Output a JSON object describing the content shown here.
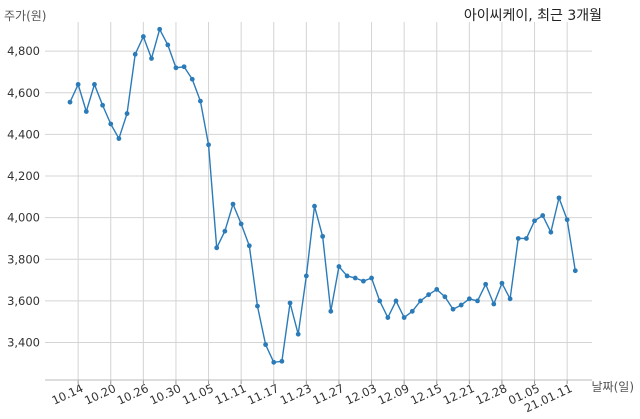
{
  "chart_data": {
    "type": "line",
    "title": "아이씨케이, 최근 3개월",
    "ylabel": "주가(원)",
    "xlabel": "날짜(일)",
    "ylim": [
      3220,
      4940
    ],
    "yticks": [
      3400,
      3600,
      3800,
      4000,
      4200,
      4400,
      4600,
      4800
    ],
    "ytick_labels": [
      "3,400",
      "3,600",
      "3,800",
      "4,000",
      "4,200",
      "4,400",
      "4,600",
      "4,800"
    ],
    "xtick_labels": [
      "10.14",
      "10.20",
      "10.26",
      "10.30",
      "11.05",
      "11.11",
      "11.17",
      "11.23",
      "11.27",
      "12.03",
      "12.09",
      "12.15",
      "12.21",
      "12.28",
      "01.05",
      "21.01.11"
    ],
    "xtick_indices": [
      1,
      5,
      9,
      13,
      17,
      21,
      25,
      29,
      33,
      37,
      41,
      45,
      49,
      53,
      57,
      61
    ],
    "grid": true,
    "color": "#2b7bb9",
    "series": [
      {
        "values": [
          4555,
          4640,
          4510,
          4640,
          4540,
          4450,
          4380,
          4500,
          4785,
          4870,
          4765,
          4905,
          4830,
          4720,
          4725,
          4665,
          4560,
          4350,
          3855,
          3935,
          4065,
          3970,
          3865,
          3575,
          3390,
          3305,
          3310,
          3590,
          3440,
          3720,
          4055,
          3910,
          3550,
          3765,
          3720,
          3710,
          3695,
          3710,
          3600,
          3520,
          3600,
          3520,
          3550,
          3600,
          3630,
          3655,
          3620,
          3560,
          3580,
          3610,
          3600,
          3680,
          3585,
          3685,
          3610,
          3900,
          3900,
          3985,
          4010,
          3930,
          4095,
          3990,
          3745
        ]
      }
    ]
  }
}
